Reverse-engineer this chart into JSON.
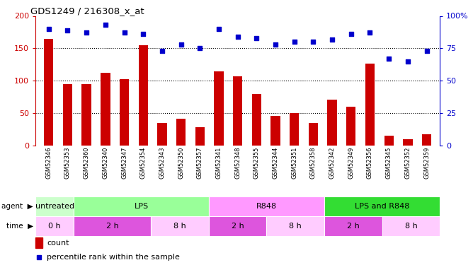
{
  "title": "GDS1249 / 216308_x_at",
  "gsm_ids": [
    "GSM52346",
    "GSM52353",
    "GSM52360",
    "GSM52340",
    "GSM52347",
    "GSM52354",
    "GSM52343",
    "GSM52350",
    "GSM52357",
    "GSM52341",
    "GSM52348",
    "GSM52355",
    "GSM52344",
    "GSM52351",
    "GSM52358",
    "GSM52342",
    "GSM52349",
    "GSM52356",
    "GSM52345",
    "GSM52352",
    "GSM52359"
  ],
  "counts": [
    165,
    95,
    95,
    112,
    103,
    155,
    35,
    42,
    29,
    115,
    107,
    80,
    46,
    50,
    35,
    71,
    60,
    127,
    15,
    10,
    18
  ],
  "percentiles": [
    90,
    89,
    87,
    93,
    87,
    86,
    73,
    78,
    75,
    90,
    84,
    83,
    78,
    80,
    80,
    82,
    86,
    87,
    67,
    65,
    73
  ],
  "agent_groups": [
    {
      "label": "untreated",
      "start": 0,
      "end": 2,
      "color": "#ccffcc"
    },
    {
      "label": "LPS",
      "start": 2,
      "end": 9,
      "color": "#99ff99"
    },
    {
      "label": "R848",
      "start": 9,
      "end": 15,
      "color": "#ff99ff"
    },
    {
      "label": "LPS and R848",
      "start": 15,
      "end": 21,
      "color": "#33dd33"
    }
  ],
  "time_groups": [
    {
      "label": "0 h",
      "start": 0,
      "end": 2,
      "color": "#ffccff"
    },
    {
      "label": "2 h",
      "start": 2,
      "end": 6,
      "color": "#dd55dd"
    },
    {
      "label": "8 h",
      "start": 6,
      "end": 9,
      "color": "#ffccff"
    },
    {
      "label": "2 h",
      "start": 9,
      "end": 12,
      "color": "#dd55dd"
    },
    {
      "label": "8 h",
      "start": 12,
      "end": 15,
      "color": "#ffccff"
    },
    {
      "label": "2 h",
      "start": 15,
      "end": 18,
      "color": "#dd55dd"
    },
    {
      "label": "8 h",
      "start": 18,
      "end": 21,
      "color": "#ffccff"
    }
  ],
  "bar_color": "#cc0000",
  "scatter_color": "#0000cc",
  "ylim_left": [
    0,
    200
  ],
  "ylim_right": [
    0,
    100
  ],
  "yticks_left": [
    0,
    50,
    100,
    150,
    200
  ],
  "yticks_right": [
    0,
    25,
    50,
    75,
    100
  ],
  "ytick_labels_right": [
    "0",
    "25",
    "50",
    "75",
    "100%"
  ],
  "background_color": "#ffffff"
}
